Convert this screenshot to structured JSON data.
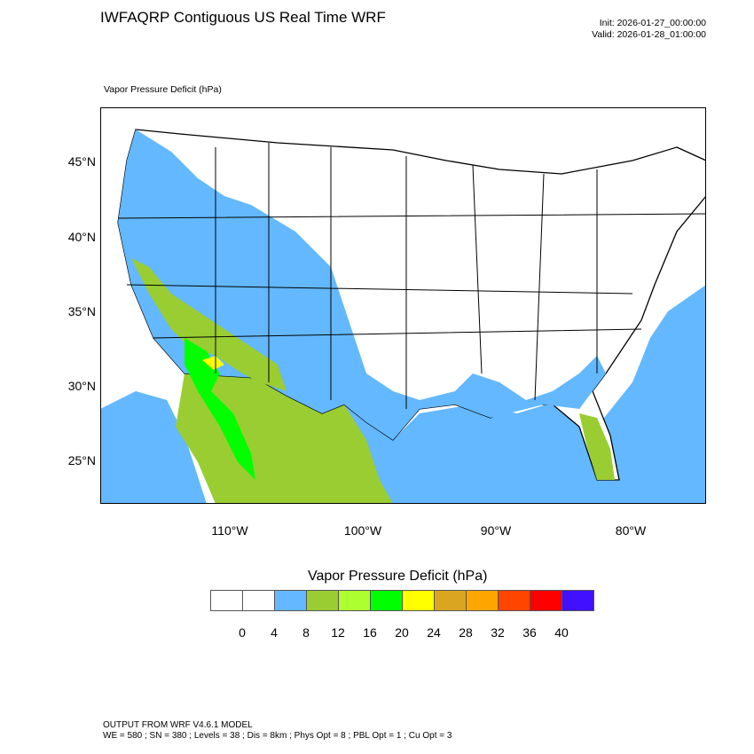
{
  "header": {
    "title": "IWFAQRP Contiguous US Real Time WRF",
    "init": "Init: 2026-01-27_00:00:00",
    "valid": "Valid: 2026-01-28_01:00:00",
    "field_label": "Vapor Pressure Deficit   (hPa)"
  },
  "map": {
    "projection": "lambert-conformal",
    "lat_labels": [
      "45°N",
      "40°N",
      "35°N",
      "30°N",
      "25°N"
    ],
    "lon_labels": [
      "110°W",
      "100°W",
      "90°W",
      "80°W"
    ],
    "boundaries": [
      "states",
      "counties",
      "countries",
      "coastlines"
    ]
  },
  "colorbar": {
    "title": "Vapor Pressure Deficit  (hPa)",
    "colors": [
      "#ffffff",
      "#ffffff",
      "#63b8ff",
      "#9acd32",
      "#adff2f",
      "#00ff00",
      "#ffff00",
      "#daa520",
      "#ffa500",
      "#ff4500",
      "#ff0000",
      "#4010ff"
    ],
    "labels": [
      "0",
      "4",
      "8",
      "12",
      "16",
      "20",
      "24",
      "28",
      "32",
      "36",
      "40"
    ]
  },
  "footer": {
    "line1": "OUTPUT FROM WRF V4.6.1 MODEL",
    "line2": "WE = 580 ; SN = 380 ; Levels = 38 ; Dis = 8km ; Phys Opt = 8 ; PBL Opt = 1 ; Cu Opt = 3"
  }
}
